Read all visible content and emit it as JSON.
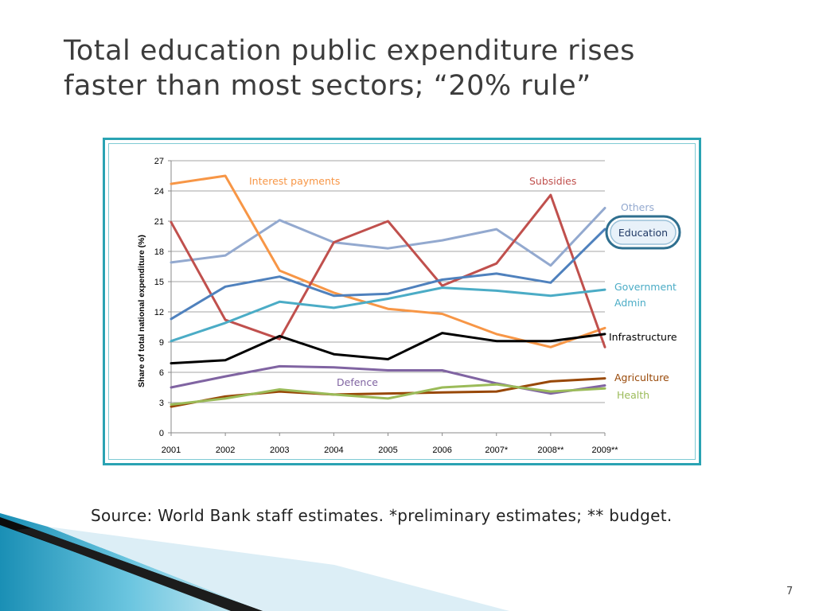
{
  "slide": {
    "title_lines": [
      "Total education public expenditure rises",
      "faster than most sectors; “20% rule”"
    ],
    "source": "Source: World Bank staff estimates. *preliminary estimates; ** budget.",
    "slide_number": "7"
  },
  "chart_data": {
    "type": "line",
    "title": "",
    "xlabel": "",
    "ylabel": "Share of total national expenditure (%)",
    "categories": [
      "2001",
      "2002",
      "2003",
      "2004",
      "2005",
      "2006",
      "2007*",
      "2008**",
      "2009**"
    ],
    "ylim": [
      0,
      27
    ],
    "yticks": [
      0,
      3,
      6,
      9,
      12,
      15,
      18,
      21,
      24,
      27
    ],
    "grid": "horizontal",
    "legend": "inline labels at line ends",
    "series": [
      {
        "name": "Others",
        "color": "#93a9cf",
        "values": [
          16.9,
          17.6,
          21.1,
          18.9,
          18.3,
          19.1,
          20.2,
          16.6,
          22.3
        ]
      },
      {
        "name": "Interest payments",
        "color": "#f79646",
        "values": [
          24.7,
          25.5,
          16.1,
          13.9,
          12.3,
          11.8,
          9.8,
          8.5,
          10.4
        ]
      },
      {
        "name": "Subsidies",
        "color": "#c0504d",
        "values": [
          20.9,
          11.2,
          9.3,
          18.9,
          21.0,
          14.6,
          16.8,
          23.6,
          8.5
        ]
      },
      {
        "name": "Education",
        "color": "#4f81bd",
        "values": [
          11.3,
          14.5,
          15.5,
          13.6,
          13.8,
          15.2,
          15.8,
          14.9,
          20.2
        ]
      },
      {
        "name": "Government Admin",
        "color": "#4bacc6",
        "values": [
          9.1,
          10.9,
          13.0,
          12.4,
          13.3,
          14.4,
          14.1,
          13.6,
          14.2
        ]
      },
      {
        "name": "Infrastructure",
        "color": "#000000",
        "values": [
          6.9,
          7.2,
          9.6,
          7.8,
          7.3,
          9.9,
          9.1,
          9.1,
          9.8
        ]
      },
      {
        "name": "Defence",
        "color": "#8064a2",
        "values": [
          4.5,
          5.6,
          6.6,
          6.5,
          6.2,
          6.2,
          4.9,
          3.9,
          4.7
        ]
      },
      {
        "name": "Agriculture",
        "color": "#984807",
        "values": [
          2.6,
          3.6,
          4.1,
          3.8,
          3.9,
          4.0,
          4.1,
          5.1,
          5.4
        ]
      },
      {
        "name": "Health",
        "color": "#9bbb59",
        "values": [
          2.8,
          3.4,
          4.3,
          3.8,
          3.4,
          4.5,
          4.8,
          4.1,
          4.4
        ]
      }
    ],
    "labels": {
      "others": "Others",
      "interest": "Interest payments",
      "subsidies": "Subsidies",
      "education": "Education",
      "gov_admin_1": "Government",
      "gov_admin_2": "Admin",
      "infrastructure": "Infrastructure",
      "defence": "Defence",
      "agriculture": "Agriculture",
      "health": "Health"
    }
  }
}
